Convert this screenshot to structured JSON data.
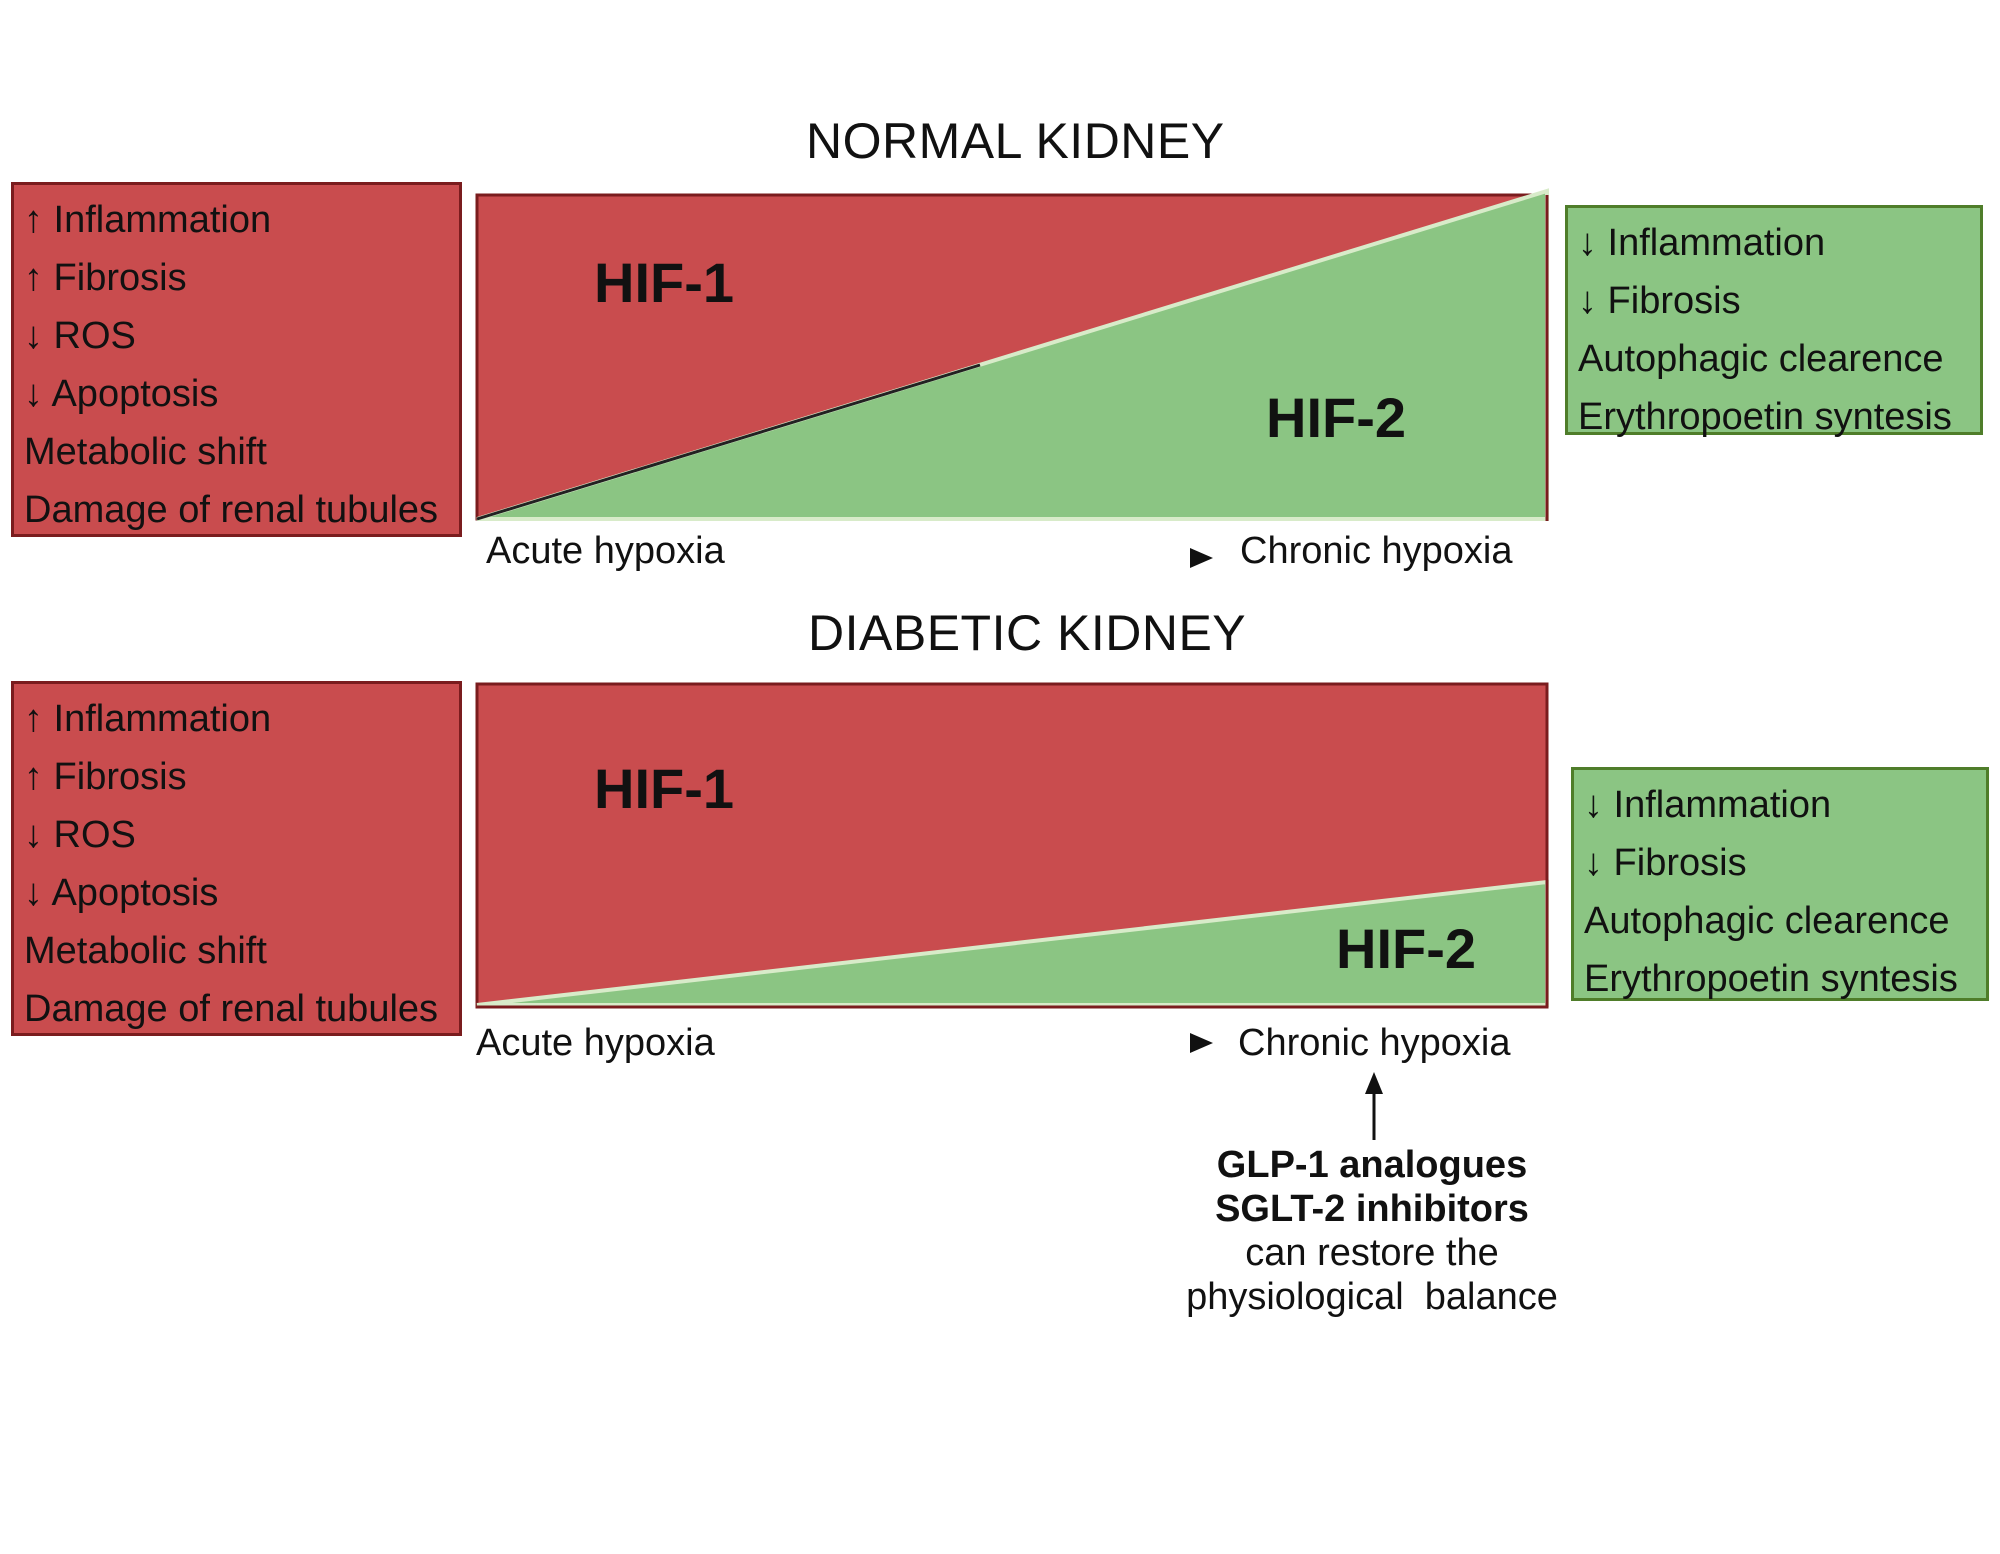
{
  "normal": {
    "title": "NORMAL KIDNEY",
    "left_effects": [
      "↑ Inflammation",
      "↑ Fibrosis",
      "↓ ROS",
      "↓ Apoptosis",
      "Metabolic shift",
      "Damage of renal tubules"
    ],
    "right_effects": [
      "↓ Inflammation",
      "↓ Fibrosis",
      "Autophagic clearence",
      "Erythropoetin syntesis"
    ],
    "hif1_label": "HIF-1",
    "hif2_label": "HIF-2",
    "axis_start": "Acute hypoxia",
    "axis_end": "Chronic hypoxia"
  },
  "diabetic": {
    "title": "DIABETIC KIDNEY",
    "left_effects": [
      "↑ Inflammation",
      "↑ Fibrosis",
      "↓ ROS",
      "↓ Apoptosis",
      "Metabolic shift",
      "Damage of renal tubules"
    ],
    "right_effects": [
      "↓ Inflammation",
      "↓ Fibrosis",
      "Autophagic clearence",
      "Erythropoetin syntesis"
    ],
    "hif1_label": "HIF-1",
    "hif2_label": "HIF-2",
    "axis_start": "Acute hypoxia",
    "axis_end": "Chronic hypoxia"
  },
  "therapy_note": {
    "line1": "GLP-1 analogues",
    "line2": "SGLT-2 inhibitors",
    "line3": "can restore the",
    "line4": "physiological  balance"
  },
  "colors": {
    "hif1_red": "#c94c4e",
    "hif2_green": "#8bc583"
  }
}
